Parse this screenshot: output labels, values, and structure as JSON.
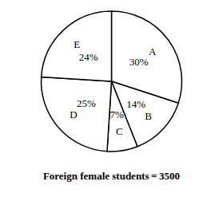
{
  "chart_data": {
    "type": "pie",
    "title": "Foreign female students = 3500",
    "categories": [
      "A",
      "B",
      "C",
      "D",
      "E"
    ],
    "values": [
      30,
      14,
      7,
      25,
      24
    ],
    "value_labels": [
      "30%",
      "14%",
      "7%",
      "25%",
      "24%"
    ],
    "colors": [
      "#ffffff",
      "#ffffff",
      "#ffffff",
      "#ffffff",
      "#ffffff"
    ],
    "data_labels": true
  }
}
